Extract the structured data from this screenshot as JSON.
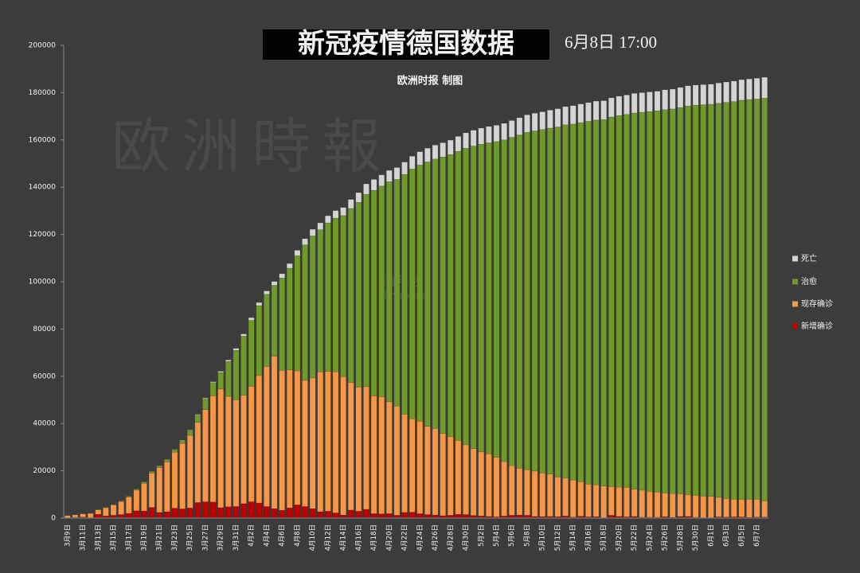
{
  "chart_data": {
    "type": "bar",
    "stacked": true,
    "title": "新冠疫情德国数据",
    "timestamp": "6月8日 17:00",
    "subtitle": "欧洲时报 制图",
    "watermarks": [
      "欧洲時報",
      "海邦达",
      "Hinabian"
    ],
    "categories": [
      "3月9日",
      null,
      "3月11日",
      null,
      "3月13日",
      null,
      "3月15日",
      null,
      "3月17日",
      null,
      "3月19日",
      null,
      "3月21日",
      null,
      "3月23日",
      null,
      "3月25日",
      null,
      "3月27日",
      null,
      "3月29日",
      null,
      "3月31日",
      null,
      "4月2日",
      null,
      "4月4日",
      null,
      "4月6日",
      null,
      "4月8日",
      null,
      "4月10日",
      null,
      "4月12日",
      null,
      "4月14日",
      null,
      "4月16日",
      null,
      "4月18日",
      null,
      "4月20日",
      null,
      "4月22日",
      null,
      "4月24日",
      null,
      "4月26日",
      null,
      "4月28日",
      null,
      "4月30日",
      null,
      "5月2日",
      null,
      "5月4日",
      null,
      "5月6日",
      null,
      "5月8日",
      null,
      "5月10日",
      null,
      "5月12日",
      null,
      "5月14日",
      null,
      "5月16日",
      null,
      "5月18日",
      null,
      "5月20日",
      null,
      "5月22日",
      null,
      "5月24日",
      null,
      "5月26日",
      null,
      "5月28日",
      null,
      "5月30日",
      null,
      "6月1日",
      null,
      "6月3日",
      null,
      "6月5日",
      null,
      "6月7日",
      null
    ],
    "series": [
      {
        "name": "新增确诊",
        "color": "#c00000",
        "values": [
          100,
          300,
          400,
          200,
          1600,
          900,
          1200,
          1500,
          2000,
          3100,
          3000,
          4500,
          2400,
          2700,
          4200,
          3900,
          4300,
          6600,
          6900,
          6800,
          4400,
          4800,
          4900,
          6100,
          6900,
          6400,
          4900,
          4000,
          3300,
          4300,
          5600,
          4900,
          4000,
          2700,
          2900,
          2200,
          1300,
          3400,
          2900,
          3700,
          1900,
          1800,
          1900,
          1200,
          2400,
          2500,
          1900,
          1500,
          1300,
          1000,
          1200,
          1600,
          1500,
          1100,
          900,
          700,
          500,
          900,
          1200,
          1300,
          1200,
          700,
          600,
          700,
          600,
          900,
          400,
          800,
          500,
          600,
          200,
          1200,
          700,
          500,
          700,
          300,
          300,
          300,
          600,
          300,
          700,
          700,
          300,
          200,
          200,
          500,
          400,
          500,
          500,
          300,
          400,
          400
        ]
      },
      {
        "name": "现存确诊",
        "color": "#f79646",
        "values": [
          1000,
          1100,
          1400,
          1800,
          1900,
          3500,
          4400,
          5500,
          6900,
          8700,
          11700,
          14500,
          18900,
          21100,
          23700,
          27700,
          30700,
          33900,
          39000,
          44900,
          50200,
          46700,
          45100,
          45900,
          48900,
          53900,
          59300,
          64500,
          59200,
          58400,
          56700,
          53400,
          55300,
          59200,
          59200,
          59700,
          58600,
          54000,
          52500,
          51900,
          49800,
          49600,
          47300,
          46200,
          41600,
          39500,
          39100,
          37300,
          36600,
          34800,
          33300,
          31300,
          29500,
          28300,
          27100,
          26500,
          25200,
          23000,
          21000,
          19800,
          19300,
          19200,
          18500,
          17900,
          16800,
          16100,
          15700,
          14600,
          13900,
          13500,
          13400,
          12200,
          12400,
          12500,
          11500,
          11500,
          11000,
          10700,
          10000,
          10100,
          9600,
          9300,
          9300,
          9100,
          9000,
          8300,
          7900,
          7500,
          7400,
          7700,
          7600,
          6900
        ]
      },
      {
        "name": "治愈",
        "color": "#6f9a2a",
        "values": [
          100,
          100,
          100,
          100,
          200,
          200,
          200,
          300,
          400,
          500,
          600,
          800,
          800,
          1000,
          1100,
          1200,
          2100,
          3100,
          4700,
          5600,
          7000,
          14800,
          21000,
          25000,
          27900,
          29600,
          30500,
          30000,
          39100,
          43000,
          48700,
          57300,
          60100,
          60100,
          62800,
          65000,
          68100,
          73600,
          78200,
          81400,
          87000,
          89100,
          93100,
          95900,
          101400,
          105700,
          108400,
          111900,
          114000,
          117000,
          119300,
          122300,
          125500,
          128000,
          130200,
          131600,
          133600,
          136100,
          138900,
          141000,
          142700,
          143900,
          145300,
          146400,
          148100,
          149400,
          150600,
          151900,
          153500,
          154300,
          155000,
          156300,
          157200,
          157800,
          159200,
          159900,
          160700,
          161300,
          162200,
          162700,
          163400,
          164400,
          165100,
          165600,
          165900,
          166700,
          167600,
          168200,
          168900,
          169100,
          169300,
          170400
        ]
      },
      {
        "name": "死亡",
        "color": "#d4d4d4",
        "values": [
          0,
          0,
          0,
          0,
          0,
          0,
          0,
          0,
          0,
          0,
          0,
          0,
          100,
          100,
          100,
          200,
          200,
          300,
          300,
          400,
          500,
          600,
          800,
          900,
          1100,
          1300,
          1400,
          1600,
          1800,
          2000,
          2300,
          2600,
          2800,
          2900,
          3000,
          3200,
          3400,
          3800,
          4100,
          4400,
          4600,
          4700,
          4800,
          5000,
          5200,
          5400,
          5600,
          5800,
          5900,
          6000,
          6100,
          6300,
          6500,
          6700,
          6800,
          6900,
          6900,
          7000,
          7100,
          7300,
          7400,
          7500,
          7500,
          7600,
          7700,
          7700,
          7800,
          7900,
          7900,
          8000,
          8000,
          8100,
          8200,
          8200,
          8300,
          8300,
          8300,
          8300,
          8400,
          8400,
          8500,
          8500,
          8500,
          8500,
          8500,
          8600,
          8600,
          8700,
          8700,
          8700,
          8800,
          8800
        ]
      }
    ],
    "ylim": [
      0,
      200000
    ],
    "yticks": [
      0,
      20000,
      40000,
      60000,
      80000,
      100000,
      120000,
      140000,
      160000,
      180000,
      200000
    ],
    "grid": false,
    "legend": "right"
  }
}
